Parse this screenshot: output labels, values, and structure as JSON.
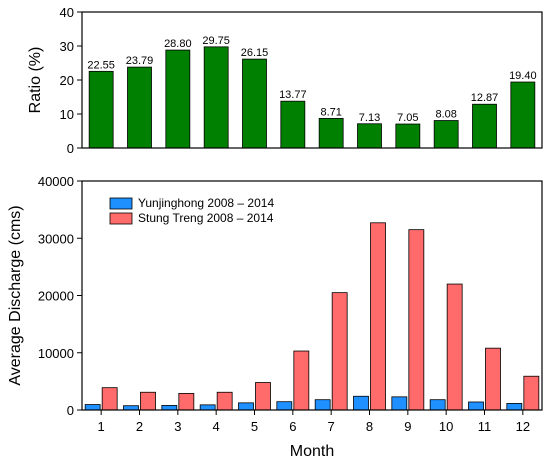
{
  "chart_data": [
    {
      "type": "bar",
      "categories": [
        "1",
        "2",
        "3",
        "4",
        "5",
        "6",
        "7",
        "8",
        "9",
        "10",
        "11",
        "12"
      ],
      "values": [
        22.55,
        23.79,
        28.8,
        29.75,
        26.15,
        13.77,
        8.71,
        7.13,
        7.05,
        8.08,
        12.87,
        19.4
      ],
      "data_labels": [
        "22.55",
        "23.79",
        "28.80",
        "29.75",
        "26.15",
        "13.77",
        "8.71",
        "7.13",
        "7.05",
        "8.08",
        "12.87",
        "19.40"
      ],
      "xlabel": "",
      "ylabel": "Ratio (%)",
      "ylim": [
        0,
        40
      ],
      "yticks": [
        0,
        10,
        20,
        30,
        40
      ],
      "bar_color": "#008000"
    },
    {
      "type": "bar",
      "categories": [
        "1",
        "2",
        "3",
        "4",
        "5",
        "6",
        "7",
        "8",
        "9",
        "10",
        "11",
        "12"
      ],
      "series": [
        {
          "name": "Yunjinghong 2008 – 2014",
          "color": "#1e90ff",
          "values": [
            950,
            750,
            800,
            900,
            1250,
            1450,
            1800,
            2400,
            2300,
            1800,
            1400,
            1150
          ]
        },
        {
          "name": "Stung Treng 2008 – 2014",
          "color": "#ff6b6b",
          "values": [
            3900,
            3100,
            2900,
            3100,
            4800,
            10300,
            20500,
            32700,
            31500,
            22000,
            10800,
            5900
          ]
        }
      ],
      "xlabel": "Month",
      "ylabel": "Average Discharge (cms)",
      "ylim": [
        0,
        40000
      ],
      "yticks": [
        0,
        10000,
        20000,
        30000,
        40000
      ],
      "legend_position": "top-left"
    }
  ]
}
